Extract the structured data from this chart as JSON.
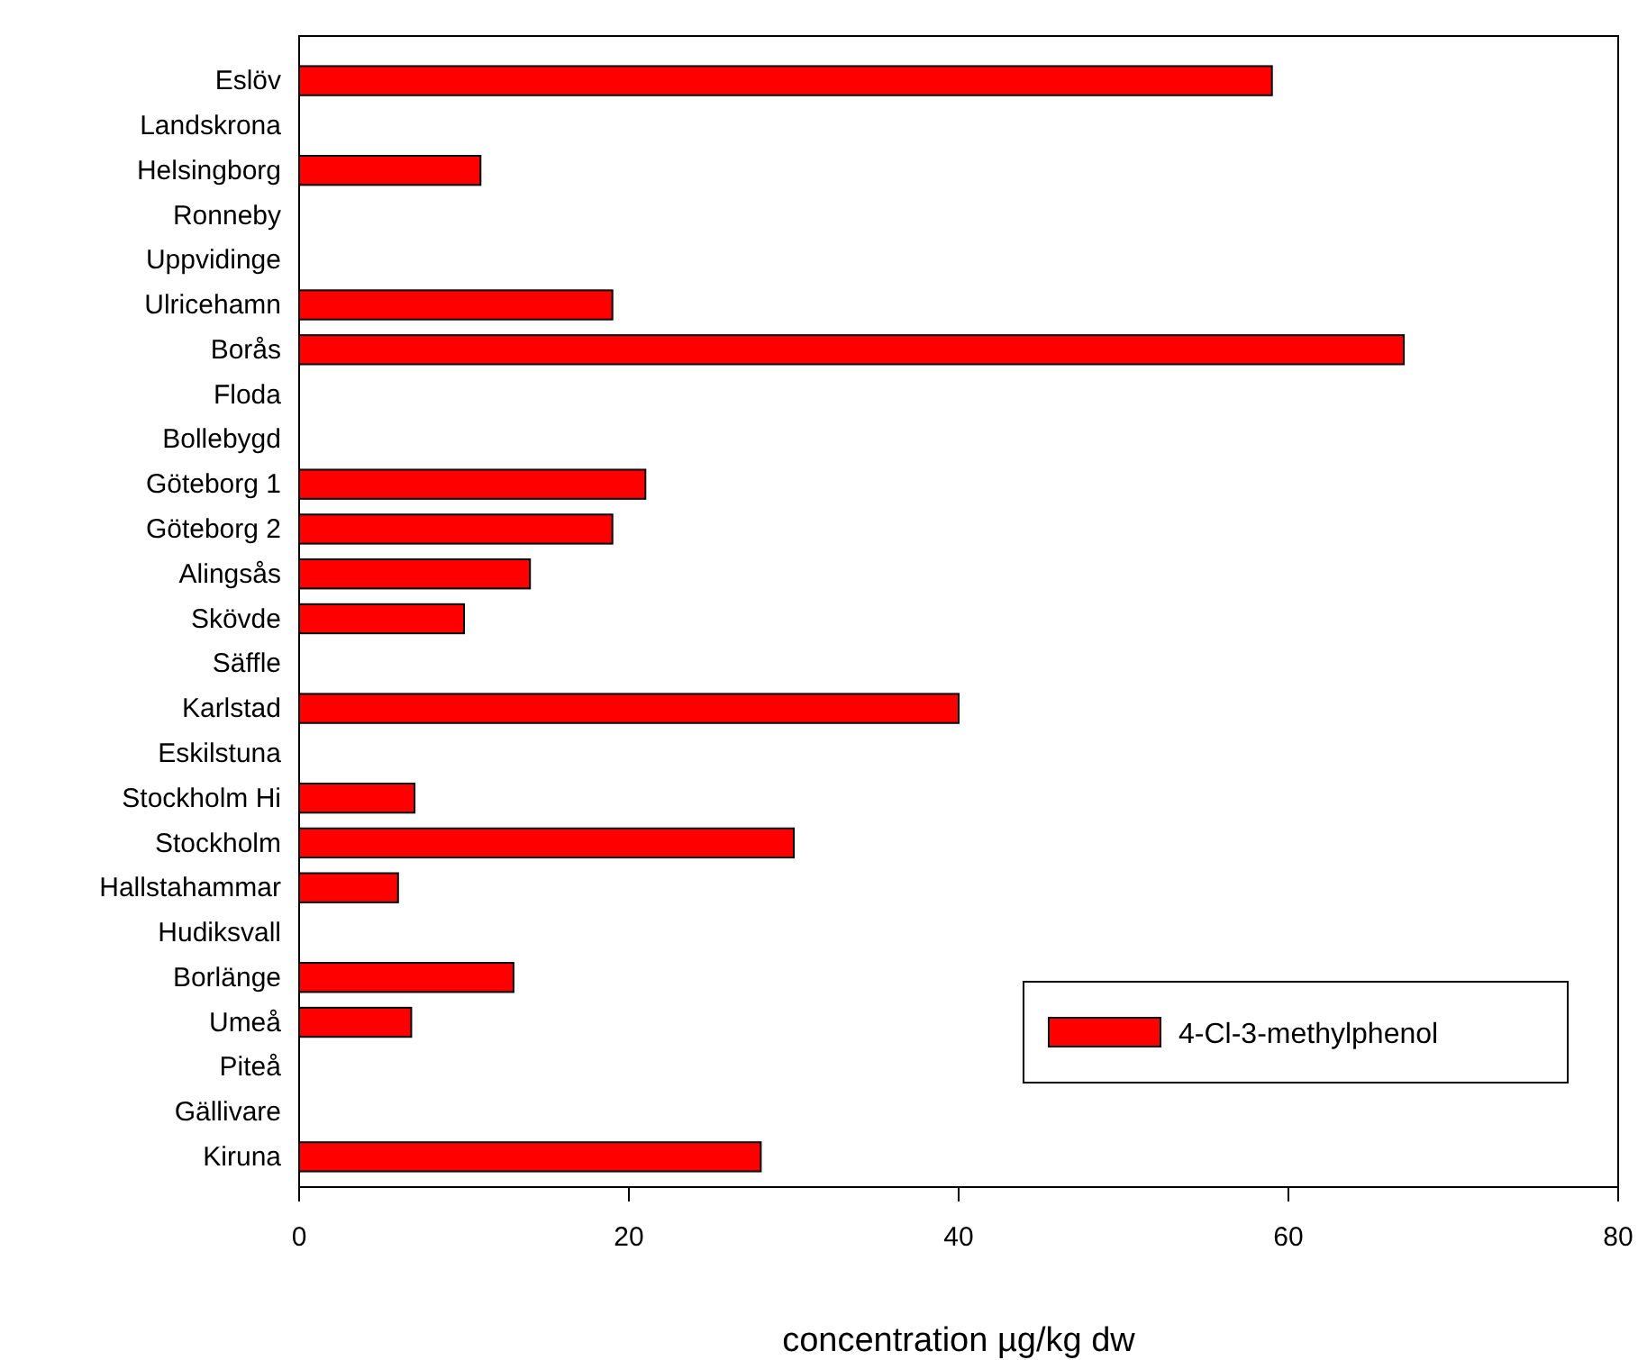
{
  "chart_data": {
    "type": "bar",
    "orientation": "horizontal",
    "xlabel": "concentration µg/kg dw",
    "categories": [
      "Eslöv",
      "Landskrona",
      "Helsingborg",
      "Ronneby",
      "Uppvidinge",
      "Ulricehamn",
      "Borås",
      "Floda",
      "Bollebygd",
      "Göteborg 1",
      "Göteborg 2",
      "Alingsås",
      "Skövde",
      "Säffle",
      "Karlstad",
      "Eskilstuna",
      "Stockholm Hi",
      "Stockholm",
      "Hallstahammar",
      "Hudiksvall",
      "Borlänge",
      "Umeå",
      "Piteå",
      "Gällivare",
      "Kiruna"
    ],
    "series": [
      {
        "name": "4-Cl-3-methylphenol",
        "color": "#ff0000",
        "values": [
          59,
          null,
          11,
          null,
          null,
          19,
          67,
          null,
          null,
          21,
          19,
          14,
          10,
          null,
          40,
          null,
          7,
          30,
          6,
          null,
          13,
          6.8,
          null,
          null,
          28
        ]
      }
    ],
    "xlim": [
      0,
      80
    ],
    "xticks": [
      0,
      20,
      40,
      60,
      80
    ],
    "grid": false,
    "legend": "bottom right"
  }
}
